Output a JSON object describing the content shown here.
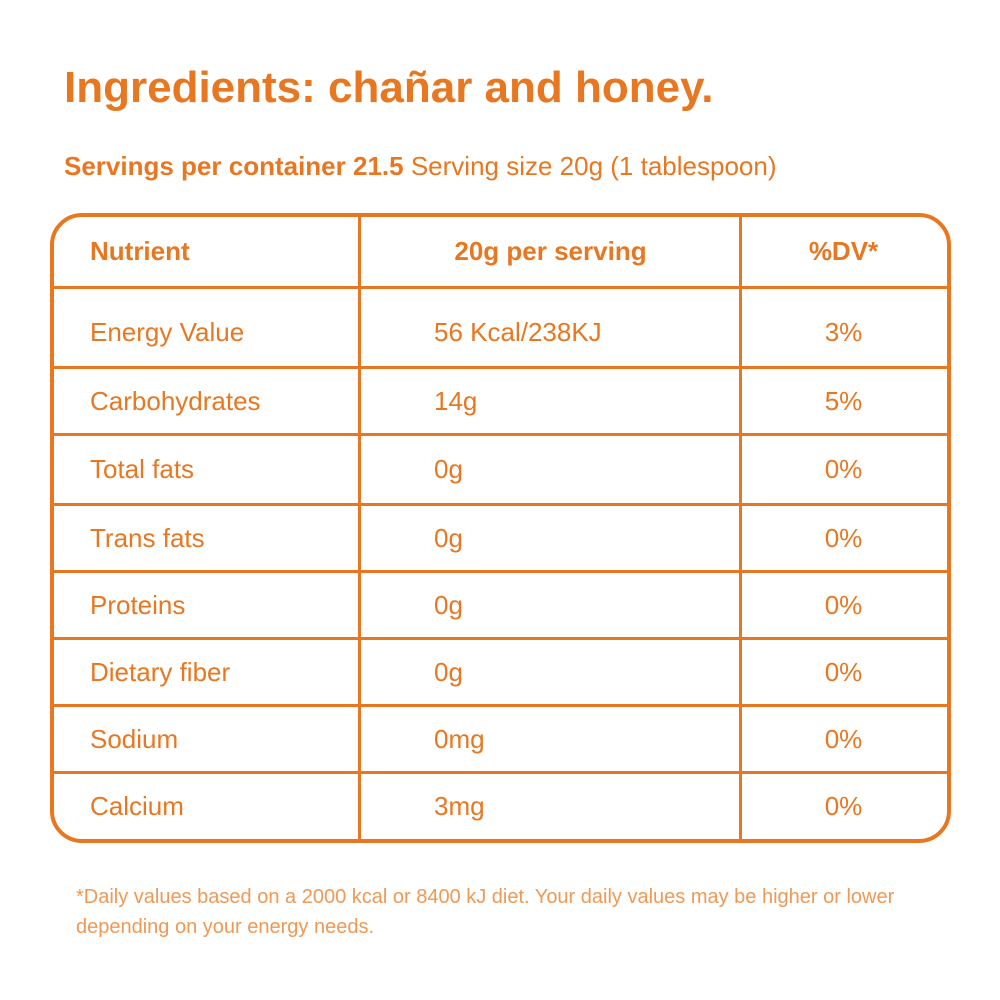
{
  "title": "Ingredients: chañar and honey.",
  "servings": {
    "per_container_label": "Servings per container 21.5",
    "serving_size_label": "Serving size 20g (1 tablespoon)"
  },
  "table": {
    "headers": {
      "nutrient": "Nutrient",
      "per_serving": "20g per serving",
      "dv": "%DV*"
    },
    "rows": [
      {
        "nutrient": "Energy Value",
        "amount": "56 Kcal/238KJ",
        "dv": "3%"
      },
      {
        "nutrient": "Carbohydrates",
        "amount": "14g",
        "dv": "5%"
      },
      {
        "nutrient": "Total fats",
        "amount": "0g",
        "dv": "0%"
      },
      {
        "nutrient": "Trans fats",
        "amount": "0g",
        "dv": "0%"
      },
      {
        "nutrient": "Proteins",
        "amount": "0g",
        "dv": "0%"
      },
      {
        "nutrient": "Dietary fiber",
        "amount": "0g",
        "dv": "0%"
      },
      {
        "nutrient": "Sodium",
        "amount": "0mg",
        "dv": "0%"
      },
      {
        "nutrient": "Calcium",
        "amount": "3mg",
        "dv": "0%"
      }
    ]
  },
  "footnote": "*Daily values based on a 2000 kcal or 8400 kJ diet. Your daily values may be higher or lower depending on your energy needs.",
  "colors": {
    "accent": "#e87722",
    "footnote": "#ee9955",
    "background": "#ffffff"
  }
}
